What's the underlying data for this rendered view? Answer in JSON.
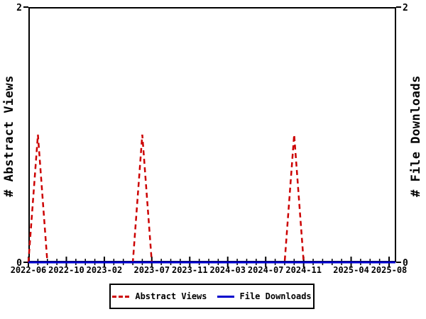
{
  "chart_data": {
    "type": "line",
    "title": "",
    "ylabel_left": "# Abstract Views",
    "ylabel_right": "# File Downloads",
    "ylim": [
      0,
      2
    ],
    "ytick_values": [
      0,
      2
    ],
    "ytick_labels": [
      "0",
      "2"
    ],
    "grid": false,
    "legend_position": "bottom-center",
    "axis_color": "#000000",
    "months": [
      "2022-06",
      "2022-07",
      "2022-08",
      "2022-09",
      "2022-10",
      "2022-11",
      "2022-12",
      "2023-01",
      "2023-02",
      "2023-03",
      "2023-04",
      "2023-05",
      "2023-06",
      "2023-07",
      "2023-08",
      "2023-09",
      "2023-10",
      "2023-11",
      "2023-12",
      "2024-01",
      "2024-02",
      "2024-03",
      "2024-04",
      "2024-05",
      "2024-06",
      "2024-07",
      "2024-08",
      "2024-09",
      "2024-10",
      "2024-11",
      "2024-12",
      "2025-01",
      "2025-02",
      "2025-03",
      "2025-04",
      "2025-05",
      "2025-06",
      "2025-07",
      "2025-08"
    ],
    "xtick_indices": [
      0,
      4,
      8,
      13,
      17,
      21,
      25,
      29,
      34,
      38
    ],
    "xtick_labels": [
      "2022-06",
      "2022-10",
      "2023-02",
      "2023-07",
      "2023-11",
      "2024-03",
      "2024-07",
      "2024-11",
      "2025-04",
      "2025-08"
    ],
    "series": [
      {
        "name": "Abstract Views",
        "color": "#CC0000",
        "style": "dashed",
        "values": [
          0,
          1,
          0,
          0,
          0,
          0,
          0,
          0,
          0,
          0,
          0,
          0,
          1,
          0,
          0,
          0,
          0,
          0,
          0,
          0,
          0,
          0,
          0,
          0,
          0,
          0,
          0,
          0,
          1,
          0,
          0,
          0,
          0,
          0,
          0,
          0,
          0,
          0,
          0
        ]
      },
      {
        "name": "File Downloads",
        "color": "#0000CC",
        "style": "solid",
        "values": [
          0,
          0,
          0,
          0,
          0,
          0,
          0,
          0,
          0,
          0,
          0,
          0,
          0,
          0,
          0,
          0,
          0,
          0,
          0,
          0,
          0,
          0,
          0,
          0,
          0,
          0,
          0,
          0,
          0,
          0,
          0,
          0,
          0,
          0,
          0,
          0,
          0,
          0,
          0
        ]
      }
    ]
  }
}
